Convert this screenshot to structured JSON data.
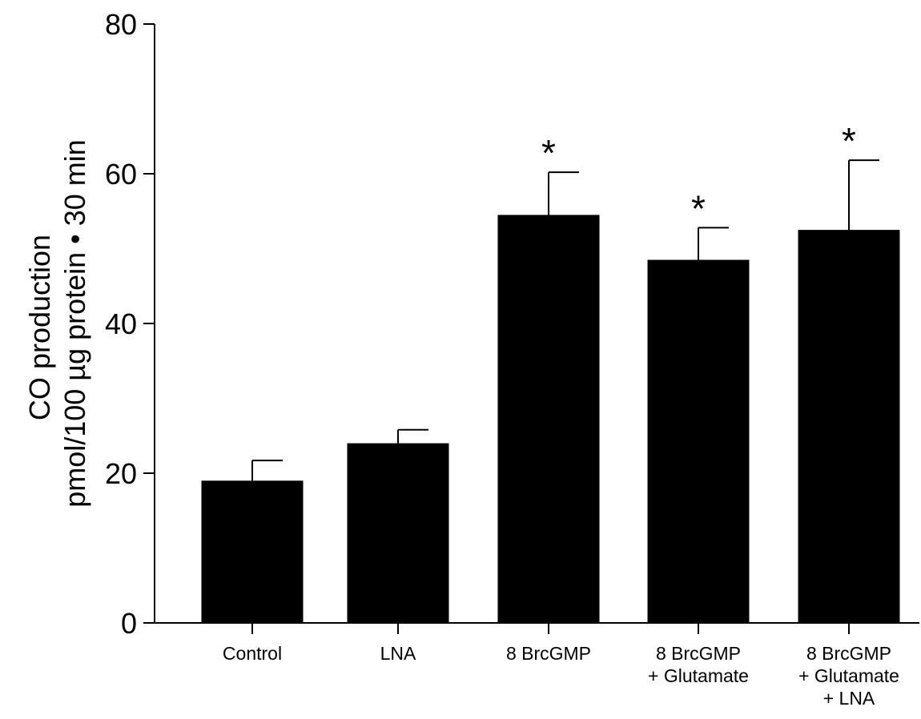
{
  "chart_data": {
    "type": "bar",
    "categories": [
      [
        "Control"
      ],
      [
        "LNA"
      ],
      [
        "8 BrcGMP"
      ],
      [
        "8 BrcGMP",
        "+ Glutamate"
      ],
      [
        "8 BrcGMP",
        "+ Glutamate",
        "+ LNA"
      ]
    ],
    "values": [
      19,
      24,
      54.5,
      48.5,
      52.5
    ],
    "errors": [
      2.7,
      1.8,
      5.7,
      4.3,
      9.3
    ],
    "significance": [
      "",
      "",
      "*",
      "*",
      "*"
    ],
    "ylabel_lines": [
      "CO production",
      "pmol/100 µg protein • 30 min"
    ],
    "xlabel": "",
    "ylim": [
      0,
      80
    ],
    "yticks": [
      0,
      20,
      40,
      60,
      80
    ],
    "bar_color": "#000000",
    "grid": false
  }
}
